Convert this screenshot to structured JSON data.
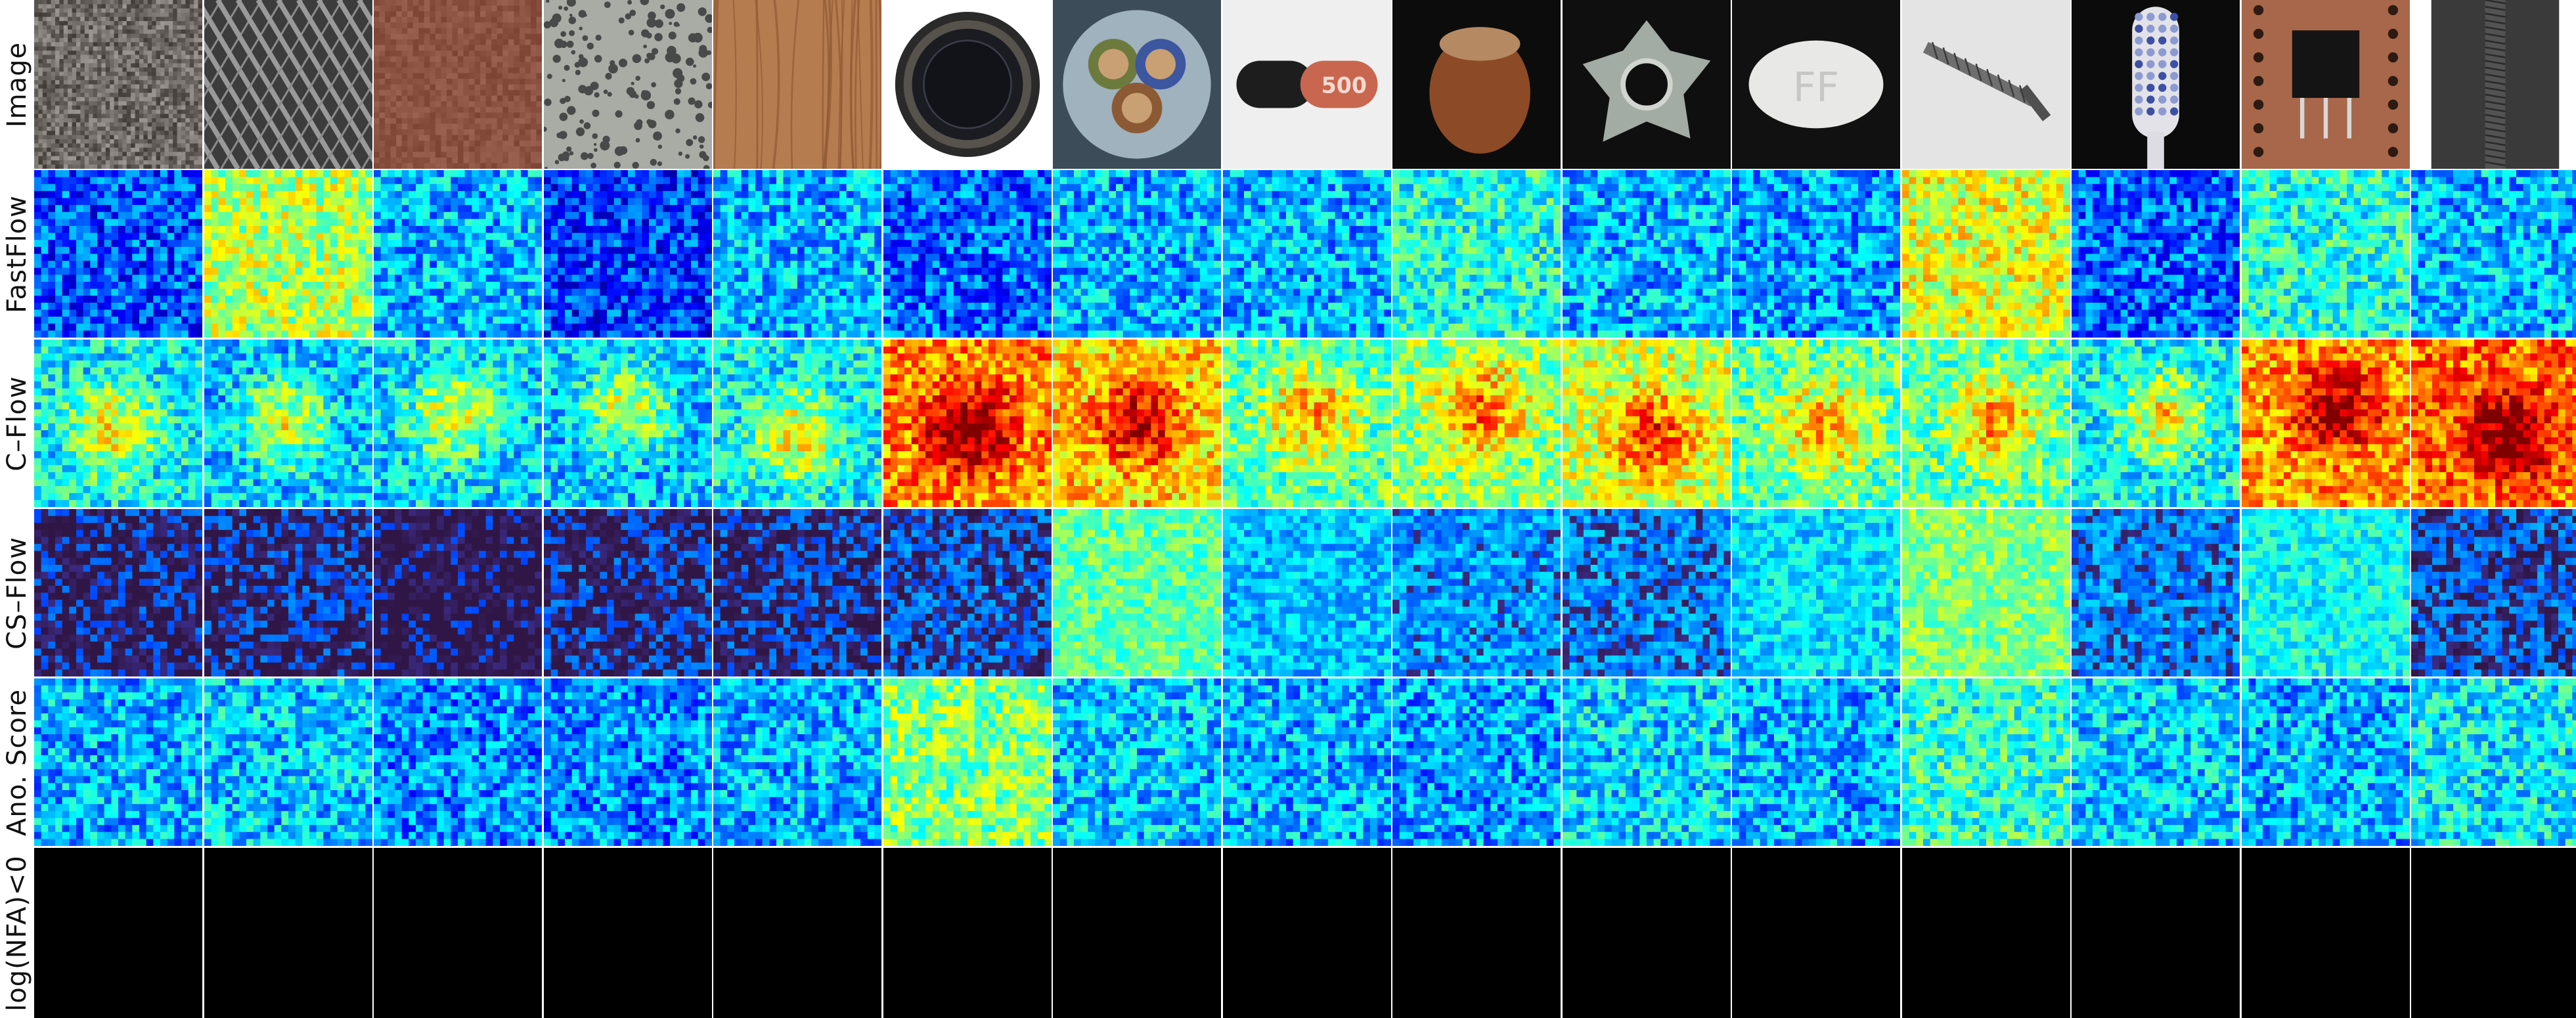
{
  "figure": {
    "row_labels": [
      "Image",
      "FastFlow",
      "C–Flow",
      "CS–Flow",
      "Ano. Score",
      "log(NFA)<0"
    ]
  },
  "columns": [
    {
      "category": "carpet"
    },
    {
      "category": "grid"
    },
    {
      "category": "leather"
    },
    {
      "category": "tile"
    },
    {
      "category": "wood"
    },
    {
      "category": "bottle"
    },
    {
      "category": "cable"
    },
    {
      "category": "capsule",
      "printed_text": "500"
    },
    {
      "category": "hazelnut"
    },
    {
      "category": "metal_nut"
    },
    {
      "category": "pill",
      "printed_text": "FF"
    },
    {
      "category": "screw"
    },
    {
      "category": "toothbrush"
    },
    {
      "category": "transistor"
    },
    {
      "category": "zipper"
    }
  ],
  "heatmaps": {
    "FastFlow": [
      0.2,
      0.55,
      0.3,
      0.18,
      0.3,
      0.22,
      0.3,
      0.3,
      0.4,
      0.3,
      0.28,
      0.6,
      0.22,
      0.4,
      0.3
    ],
    "C-Flow": [
      0.45,
      0.4,
      0.42,
      0.4,
      0.45,
      0.82,
      0.75,
      0.55,
      0.6,
      0.65,
      0.55,
      0.55,
      0.45,
      0.8,
      0.85
    ],
    "CS-Flow": [
      0.05,
      0.07,
      0.0,
      0.07,
      0.08,
      0.12,
      0.5,
      0.28,
      0.22,
      0.18,
      0.32,
      0.55,
      0.18,
      0.38,
      0.12
    ],
    "Ano. Score": [
      0.3,
      0.32,
      0.26,
      0.26,
      0.3,
      0.5,
      0.32,
      0.3,
      0.28,
      0.34,
      0.3,
      0.42,
      0.33,
      0.3,
      0.36
    ]
  },
  "nfa_mask": {
    "label": "log(NFA)<0",
    "all_black": true
  },
  "colors": {
    "background": "#ffffff",
    "separator": "#ffffff",
    "mask": "#000000",
    "colormap": "jet"
  }
}
